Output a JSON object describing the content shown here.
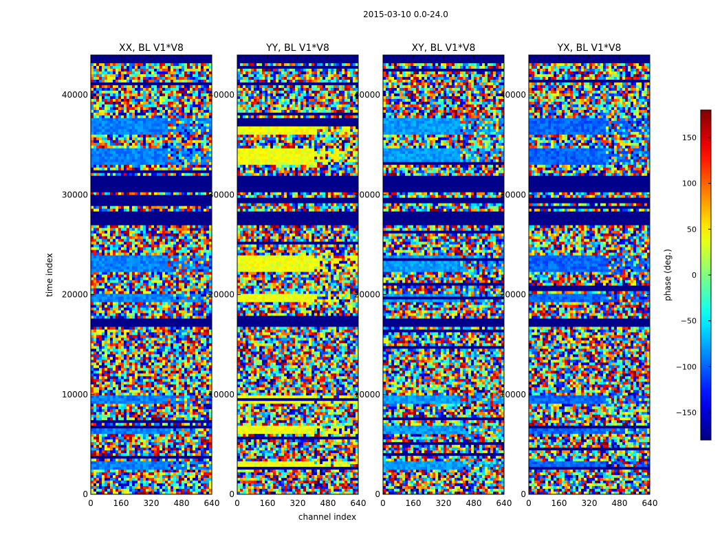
{
  "chart_data": {
    "type": "heatmap",
    "suptitle": "2015-03-10 0.0-24.0",
    "xlabel": "channel index",
    "ylabel": "time index",
    "x_range": [
      0,
      640
    ],
    "y_range": [
      0,
      44000
    ],
    "x_ticks": [
      "0",
      "160",
      "320",
      "480",
      "640"
    ],
    "y_ticks": [
      "0",
      "10000",
      "20000",
      "30000",
      "40000"
    ],
    "colorbar": {
      "label": "phase (deg.)",
      "range": [
        -180,
        180
      ],
      "ticks": [
        "150",
        "100",
        "50",
        "0",
        "−50",
        "−100",
        "−150"
      ],
      "colormap": "jet"
    },
    "panels": [
      {
        "title": "XX, BL V1*V8",
        "base_phase": -90
      },
      {
        "title": "YY, BL V1*V8",
        "base_phase": 40
      },
      {
        "title": "XY, BL V1*V8",
        "base_phase": -80
      },
      {
        "title": "YX, BL V1*V8",
        "base_phase": -100
      }
    ],
    "flagged_bands": [
      [
        30200,
        31800
      ],
      [
        27000,
        28400
      ],
      [
        16800,
        17600
      ],
      [
        29200,
        29700
      ],
      [
        43200,
        44000
      ]
    ],
    "coherent_bands": [
      [
        36000,
        37800
      ],
      [
        33000,
        34600
      ],
      [
        22200,
        23800
      ],
      [
        19300,
        20000
      ],
      [
        6000,
        6800
      ],
      [
        2600,
        3400
      ],
      [
        9000,
        9800
      ]
    ]
  }
}
